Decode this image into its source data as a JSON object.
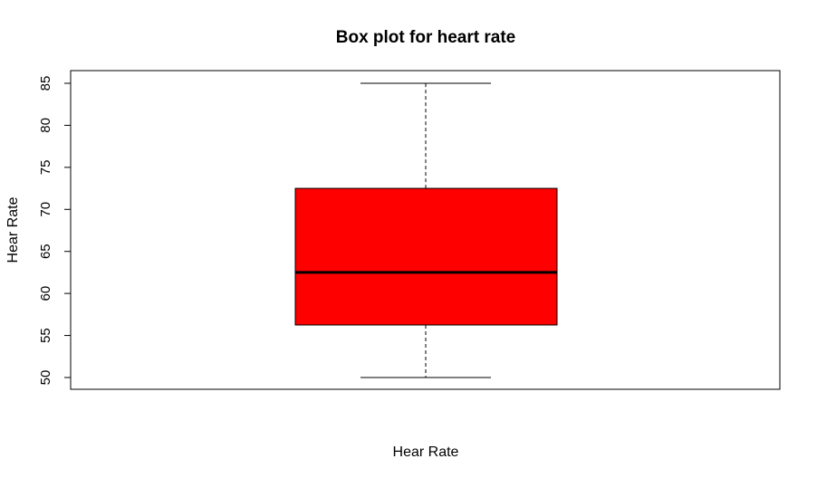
{
  "chart_data": {
    "type": "boxplot",
    "title": "Box plot for heart rate",
    "xlabel": "Hear Rate",
    "ylabel": "Hear Rate",
    "ylim": [
      49,
      87
    ],
    "yticks": [
      50,
      55,
      60,
      65,
      70,
      75,
      80,
      85
    ],
    "series": [
      {
        "name": "Hear Rate",
        "min": 50,
        "q1": 56.25,
        "median": 62.5,
        "q3": 72.5,
        "max": 85
      }
    ],
    "fill_color": "#ff0000"
  }
}
